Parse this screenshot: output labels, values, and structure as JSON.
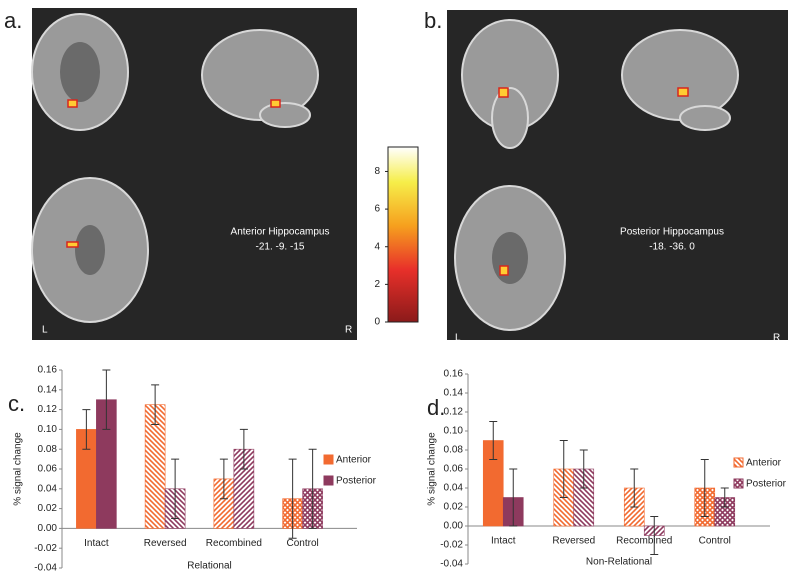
{
  "panels": {
    "a": {
      "label": "a.",
      "region": "Anterior Hippocampus",
      "coords": "-21. -9. -15",
      "left": "L",
      "right": "R"
    },
    "b": {
      "label": "b.",
      "region": "Posterior Hippocampus",
      "coords": "-18. -36. 0",
      "left": "L",
      "right": "R"
    }
  },
  "colorbar": {
    "ylim": [
      0,
      9.3
    ],
    "yticks": [
      0,
      2,
      4,
      6,
      8
    ]
  },
  "chart_data": [
    {
      "type": "bar",
      "panel_label": "c.",
      "x_label": "Relational",
      "y_label": "% signal change",
      "categories": [
        "Intact",
        "Reversed",
        "Recombined",
        "Control"
      ],
      "patterns": [
        "solid",
        "hatch-down",
        "hatch-up",
        "cross"
      ],
      "series": [
        {
          "name": "Anterior",
          "color": "#f26a30",
          "values": [
            0.1,
            0.125,
            0.05,
            0.03
          ],
          "errors": [
            0.02,
            0.02,
            0.02,
            0.04
          ]
        },
        {
          "name": "Posterior",
          "color": "#8e3a5e",
          "values": [
            0.13,
            0.04,
            0.08,
            0.04
          ],
          "errors": [
            0.03,
            0.03,
            0.02,
            0.04
          ]
        }
      ],
      "ylim": [
        -0.04,
        0.16
      ],
      "yticks": [
        {
          "value": -0.04,
          "label": "-0.04"
        },
        {
          "value": -0.02,
          "label": "-0.02"
        },
        {
          "value": 0,
          "label": "0.00"
        },
        {
          "value": 0.02,
          "label": "0.02"
        },
        {
          "value": 0.04,
          "label": "0.04"
        },
        {
          "value": 0.06,
          "label": "0.06"
        },
        {
          "value": 0.08,
          "label": "0.08"
        },
        {
          "value": 0.1,
          "label": "0.10"
        },
        {
          "value": 0.12,
          "label": "0.12"
        },
        {
          "value": 0.14,
          "label": "0.14"
        },
        {
          "value": 0.16,
          "label": "0.16"
        }
      ],
      "legend": "right"
    },
    {
      "type": "bar",
      "panel_label": "d.",
      "x_label": "Non-Relational",
      "y_label": "% signal change",
      "categories": [
        "Intact",
        "Reversed",
        "Recombined",
        "Control"
      ],
      "patterns": [
        "solid",
        "hatch-down",
        "hatch-up",
        "cross"
      ],
      "series": [
        {
          "name": "Anterior",
          "color": "#f26a30",
          "values": [
            0.09,
            0.06,
            0.04,
            0.04
          ],
          "errors": [
            0.02,
            0.03,
            0.02,
            0.03
          ]
        },
        {
          "name": "Posterior",
          "color": "#8e3a5e",
          "values": [
            0.03,
            0.06,
            -0.01,
            0.03
          ],
          "errors": [
            0.03,
            0.02,
            0.02,
            0.01
          ]
        }
      ],
      "ylim": [
        -0.04,
        0.16
      ],
      "yticks": [
        {
          "value": -0.04,
          "label": "-0.04"
        },
        {
          "value": -0.02,
          "label": "-0.02"
        },
        {
          "value": 0,
          "label": "0.00"
        },
        {
          "value": 0.02,
          "label": "0.02"
        },
        {
          "value": 0.04,
          "label": "0.04"
        },
        {
          "value": 0.06,
          "label": "0.06"
        },
        {
          "value": 0.08,
          "label": "0.08"
        },
        {
          "value": 0.1,
          "label": "0.10"
        },
        {
          "value": 0.12,
          "label": "0.12"
        },
        {
          "value": 0.14,
          "label": "0.14"
        },
        {
          "value": 0.16,
          "label": "0.16"
        }
      ],
      "legend": "right"
    }
  ]
}
